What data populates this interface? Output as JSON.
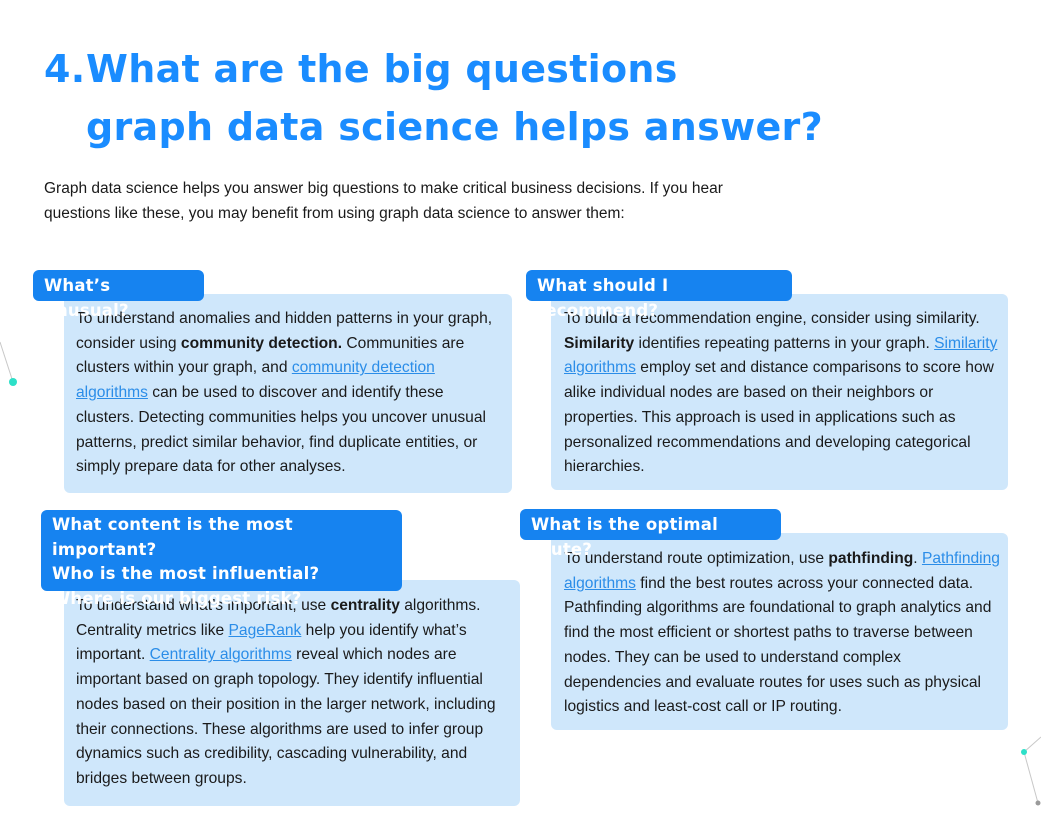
{
  "heading": {
    "number": "4.",
    "line1": "What are the big questions",
    "line2": "graph data science helps answer?"
  },
  "intro": "Graph data science helps you answer big questions to make critical business decisions. If you hear questions like these, you may benefit from using graph data science to answer them:",
  "cards": {
    "unusual": {
      "tag": "What’s unusual?",
      "t1": "To understand anomalies and hidden patterns in your graph, consider using ",
      "b1": "community detection.",
      "t2": " Communities are clusters within your graph, and ",
      "link1": "community detection algorithms",
      "t3": " can be used to discover and identify these clusters. Detecting communities helps you uncover unusual patterns, predict similar behavior, find duplicate entities, or simply prepare data for other analyses."
    },
    "recommend": {
      "tag": "What should I recommend?",
      "t1": "To build a recommendation engine, consider using similarity. ",
      "b1": "Similarity",
      "t2": " identifies repeating patterns in your graph. ",
      "link1": "Similarity algorithms",
      "t3": " employ set and distance comparisons to score how alike individual nodes are based on their neighbors or properties. This approach is used in applications such as personalized recommendations and developing categorical hierarchies."
    },
    "important": {
      "tag1": "What content is the most important?",
      "tag2": "Who is the most influential?",
      "tag3": "Where is our biggest risk?",
      "t1": "To understand what’s important, use ",
      "b1": "centrality",
      "t2": " algorithms. Centrality metrics like ",
      "link1": "PageRank",
      "t3": " help you identify what’s important. ",
      "link2": "Centrality algorithms",
      "t4": " reveal which nodes are important based on graph topology. They identify influential nodes based on their position in the larger network, including their connections. These algorithms are used to infer group dynamics such as credibility, cascading vulnerability, and bridges between groups."
    },
    "route": {
      "tag": "What is the optimal route?",
      "t1": "To understand route optimization, use ",
      "b1": "pathfinding",
      "t2": ". ",
      "link1": "Pathfinding algorithms",
      "t3": " find the best routes across your connected data. Pathfinding algorithms are foundational to graph analytics and find the most efficient or shortest paths to traverse between nodes. They can be used to understand complex dependencies and evaluate routes for uses such as physical logistics and least-cost call or IP routing."
    }
  },
  "colors": {
    "accent": "#1a8cff",
    "tag_bg": "#1683f0",
    "card_bg": "#cfe7fb",
    "link": "#2b8de8",
    "node": "#2de0c8"
  }
}
